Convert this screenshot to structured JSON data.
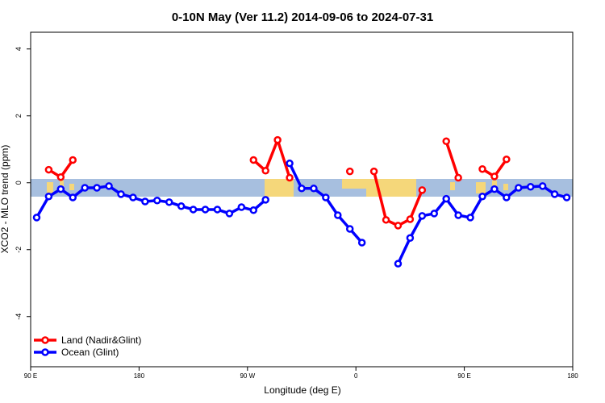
{
  "chart_data": {
    "type": "line",
    "title": "0-10N May (Ver 11.2)   2014-09-06 to 2024-07-31",
    "x_label": "Longitude (deg E)",
    "y_label": "XCO2 - MLO trend (ppm)",
    "x": [
      95,
      105,
      115,
      125,
      135,
      145,
      155,
      165,
      175,
      185,
      195,
      205,
      215,
      225,
      235,
      245,
      255,
      265,
      275,
      285,
      295,
      305,
      315,
      325,
      335,
      345,
      355,
      365,
      375,
      385,
      395,
      405,
      415,
      425,
      435,
      445,
      455,
      465,
      475,
      485,
      495,
      505,
      515,
      525,
      535
    ],
    "series": [
      {
        "name": "Land (Nadir&Glint)",
        "color": "#ff0000",
        "values": [
          null,
          0.39,
          0.17,
          0.68,
          null,
          null,
          null,
          null,
          null,
          null,
          null,
          null,
          null,
          null,
          null,
          null,
          null,
          null,
          0.68,
          0.36,
          1.28,
          0.15,
          null,
          null,
          null,
          null,
          0.34,
          null,
          0.34,
          -1.11,
          -1.28,
          -1.09,
          -0.22,
          null,
          1.24,
          0.15,
          null,
          0.41,
          0.19,
          0.7,
          null,
          null,
          null,
          null,
          null
        ]
      },
      {
        "name": "Ocean (Glint)",
        "color": "#0000ff",
        "values": [
          -1.04,
          -0.41,
          -0.19,
          -0.44,
          -0.15,
          -0.15,
          -0.1,
          -0.34,
          -0.44,
          -0.56,
          -0.53,
          -0.58,
          -0.7,
          -0.8,
          -0.8,
          -0.8,
          -0.92,
          -0.73,
          -0.82,
          -0.51,
          null,
          0.58,
          -0.17,
          -0.17,
          -0.44,
          -0.97,
          -1.38,
          -1.79,
          null,
          null,
          -2.42,
          -1.65,
          -0.99,
          -0.92,
          -0.48,
          -0.97,
          -1.04,
          -0.41,
          -0.19,
          -0.44,
          -0.15,
          -0.12,
          -0.1,
          -0.34,
          -0.44
        ]
      }
    ],
    "xlim": [
      90,
      540
    ],
    "xticks": [
      {
        "value": 90,
        "label": "90 E"
      },
      180,
      {
        "value": 270,
        "label": "90 W"
      },
      {
        "value": 360,
        "label": "0"
      },
      {
        "value": 450,
        "label": "90 E"
      },
      {
        "value": 540,
        "label": "180"
      }
    ],
    "ylim": [
      -5.5,
      4.5
    ],
    "yticks": [
      4,
      2,
      0,
      -2,
      -4
    ],
    "legend": "bottom-left"
  }
}
